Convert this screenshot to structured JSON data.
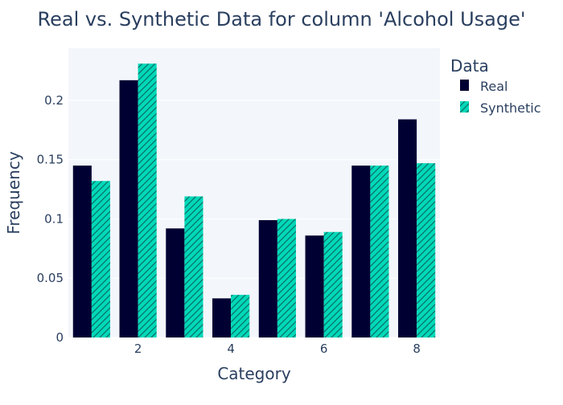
{
  "chart_data": {
    "type": "bar",
    "title": "Real vs. Synthetic Data for column 'Alcohol Usage'",
    "xlabel": "Category",
    "ylabel": "Frequency",
    "x": [
      1,
      2,
      3,
      4,
      5,
      6,
      7,
      8
    ],
    "xticks": [
      2,
      4,
      6,
      8
    ],
    "yticks": [
      0,
      0.05,
      0.1,
      0.15,
      0.2
    ],
    "xlim": [
      0.5,
      8.5
    ],
    "ylim": [
      0,
      0.244
    ],
    "grid": true,
    "legend": {
      "title": "Data",
      "position": "top-right"
    },
    "series": [
      {
        "name": "Real",
        "color": "#000033",
        "pattern": "solid",
        "values": [
          0.145,
          0.217,
          0.092,
          0.033,
          0.099,
          0.086,
          0.145,
          0.184
        ]
      },
      {
        "name": "Synthetic",
        "color": "#00d9b9",
        "pattern": "diagonal-hatch",
        "values": [
          0.132,
          0.231,
          0.119,
          0.036,
          0.1,
          0.089,
          0.145,
          0.147
        ]
      }
    ]
  }
}
